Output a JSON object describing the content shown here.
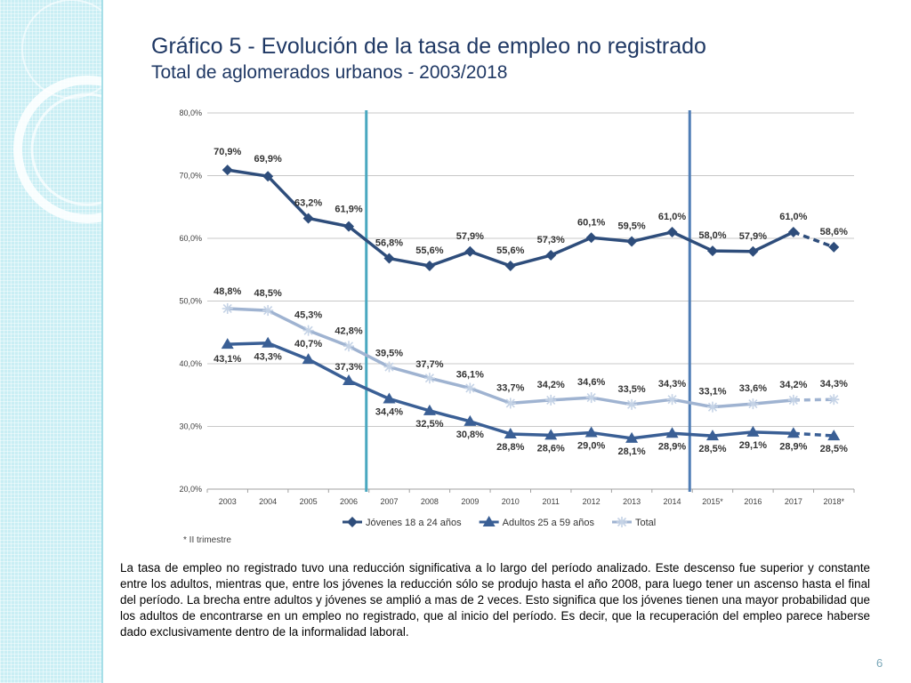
{
  "slide": {
    "title_line1": "Gráfico 5 - Evolución de la tasa de empleo no registrado",
    "title_line2": "Total de aglomerados urbanos  - 2003/2018",
    "footnote": "* II trimestre",
    "body_text": "La tasa de empleo no registrado tuvo una reducción significativa a lo largo del período analizado. Este descenso fue superior y constante entre los adultos, mientras que, entre los jóvenes la reducción sólo se produjo hasta el año 2008, para luego tener un ascenso hasta el final del período. La brecha entre adultos y jóvenes se amplió a mas de 2 veces. Esto significa que los jóvenes tienen una mayor probabilidad que los adultos de encontrarse en un empleo no registrado, que al inicio del período.  Es decir, que la recuperación del empleo parece haberse dado exclusivamente dentro de la informalidad laboral.",
    "page_number": "6"
  },
  "colors": {
    "title": "#1f3864",
    "band": "#c9eef4",
    "jovenes": "#2e4d7b",
    "adultos": "#3a5f95",
    "total": "#9fb3d1",
    "vline_2007": "#4aa8c0",
    "vline_2015": "#4f7db5"
  },
  "chart_data": {
    "type": "line",
    "title": "",
    "xlabel": "",
    "ylabel": "",
    "categories": [
      "2003",
      "2004",
      "2005",
      "2006",
      "2007",
      "2008",
      "2009",
      "2010",
      "2011",
      "2012",
      "2013",
      "2014",
      "2015*",
      "2016",
      "2017",
      "2018*"
    ],
    "ylim": [
      20,
      80
    ],
    "yticks": [
      "20,0%",
      "30,0%",
      "40,0%",
      "50,0%",
      "60,0%",
      "70,0%",
      "80,0%"
    ],
    "grid": true,
    "legend_position": "bottom",
    "vertical_markers": [
      "2007",
      "2015*"
    ],
    "series": [
      {
        "name": "Jóvenes 18 a 24 años",
        "marker": "diamond",
        "values": [
          70.9,
          69.9,
          63.2,
          61.9,
          56.8,
          55.6,
          57.9,
          55.6,
          57.3,
          60.1,
          59.5,
          61.0,
          58.0,
          57.9,
          61.0,
          58.6
        ],
        "labels": [
          "70,9%",
          "69,9%",
          "63,2%",
          "61,9%",
          "56,8%",
          "55,6%",
          "57,9%",
          "55,6%",
          "57,3%",
          "60,1%",
          "59,5%",
          "61,0%",
          "58,0%",
          "57,9%",
          "61,0%",
          "58,6%"
        ]
      },
      {
        "name": "Adultos 25 a 59 años",
        "marker": "triangle",
        "values": [
          43.1,
          43.3,
          40.7,
          37.3,
          34.4,
          32.5,
          30.8,
          28.8,
          28.6,
          29.0,
          28.1,
          28.9,
          28.5,
          29.1,
          28.9,
          28.5
        ],
        "labels": [
          "43,1%",
          "43,3%",
          "40,7%",
          "37,3%",
          "34,4%",
          "32,5%",
          "30,8%",
          "28,8%",
          "28,6%",
          "29,0%",
          "28,1%",
          "28,9%",
          "28,5%",
          "29,1%",
          "28,9%",
          "28,5%"
        ]
      },
      {
        "name": "Total",
        "marker": "star",
        "values": [
          48.8,
          48.5,
          45.3,
          42.8,
          39.5,
          37.7,
          36.1,
          33.7,
          34.2,
          34.6,
          33.5,
          34.3,
          33.1,
          33.6,
          34.2,
          34.3
        ],
        "labels": [
          "48,8%",
          "48,5%",
          "45,3%",
          "42,8%",
          "39,5%",
          "37,7%",
          "36,1%",
          "33,7%",
          "34,2%",
          "34,6%",
          "33,5%",
          "34,3%",
          "33,1%",
          "33,6%",
          "34,2%",
          "34,3%"
        ]
      }
    ]
  }
}
